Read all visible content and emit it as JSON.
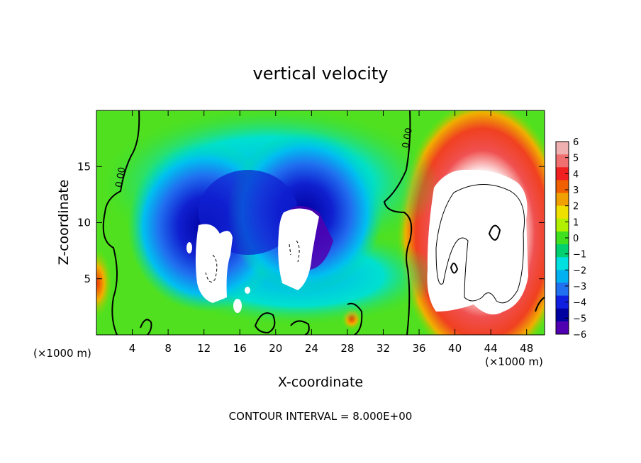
{
  "chart_data": {
    "type": "heatmap",
    "title": "vertical velocity",
    "xlabel": "X-coordinate",
    "ylabel": "Z-coordinate",
    "x_units": "(×1000 m)",
    "xlim": [
      0,
      50
    ],
    "ylim": [
      0,
      20
    ],
    "x_ticks": [
      4,
      8,
      12,
      16,
      20,
      24,
      28,
      32,
      36,
      40,
      44,
      48
    ],
    "y_ticks": [
      5,
      10,
      15
    ],
    "footer": "CONTOUR INTERVAL = 8.000E+00",
    "colorbar": {
      "ticks": [
        6,
        5,
        4,
        3,
        2,
        1,
        0,
        -1,
        -2,
        -3,
        -4,
        -5,
        -6
      ],
      "colors": [
        "#f0b0b0",
        "#f07070",
        "#f02020",
        "#f06000",
        "#f0a000",
        "#f0e000",
        "#b0f000",
        "#40e020",
        "#00d070",
        "#00e0e0",
        "#00b0f0",
        "#2070f0",
        "#1020e0",
        "#0000a0",
        "#5000b0"
      ]
    },
    "contour_labels": [
      {
        "text": "0.00",
        "x": 3,
        "z": 14
      },
      {
        "text": "0.00",
        "x": 35,
        "z": 17.5
      }
    ]
  }
}
